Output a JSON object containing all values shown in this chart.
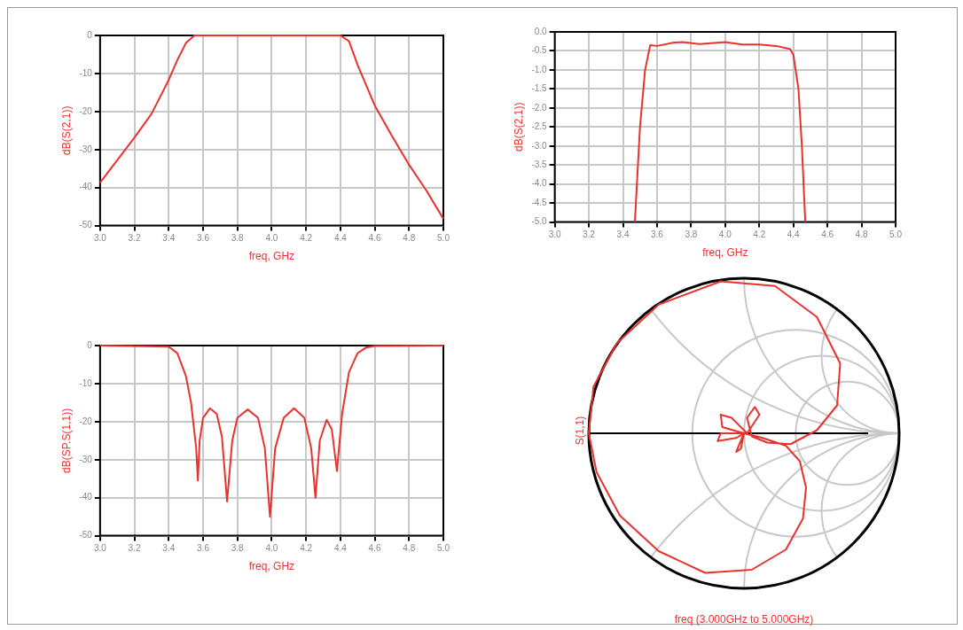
{
  "chart_data": [
    {
      "type": "line",
      "xlabel": "freq, GHz",
      "ylabel": "dB(S(2,1))",
      "x": [
        3.0,
        3.2,
        3.3,
        3.4,
        3.45,
        3.5,
        3.55,
        4.4,
        4.45,
        4.5,
        4.6,
        4.7,
        4.8,
        4.9,
        5.0
      ],
      "series": [
        {
          "color": "#e8322e",
          "values": [
            -38.7,
            -26.9,
            -20.6,
            -11.7,
            -6.5,
            -2,
            0,
            0,
            -1.5,
            -7.7,
            -18.4,
            -26.4,
            -34,
            -40.7,
            -48.2
          ]
        }
      ],
      "xlim": [
        3.0,
        5.0
      ],
      "ylim": [
        -50,
        0
      ],
      "xticks": [
        {
          "value": 3,
          "label": "3.0"
        },
        3.2,
        3.4,
        3.6,
        3.8,
        {
          "value": 4,
          "label": "4.0"
        },
        4.2,
        4.4,
        4.6,
        4.8,
        {
          "value": 5,
          "label": "5.0"
        }
      ],
      "yticks": [
        -50,
        -40,
        -30,
        -20,
        -10,
        0
      ],
      "grid": true
    },
    {
      "type": "line",
      "xlabel": "freq, GHz",
      "ylabel": "dB(S(2,1))",
      "x": [
        3.47,
        3.5,
        3.53,
        3.56,
        3.6,
        3.7,
        3.75,
        3.85,
        4.0,
        4.1,
        4.2,
        4.3,
        4.38,
        4.4,
        4.43,
        4.45,
        4.47
      ],
      "series": [
        {
          "color": "#e8322e",
          "values": [
            -5,
            -2.5,
            -1.0,
            -0.35,
            -0.37,
            -0.28,
            -0.27,
            -0.32,
            -0.27,
            -0.33,
            -0.33,
            -0.37,
            -0.45,
            -0.6,
            -1.5,
            -3,
            -5
          ]
        }
      ],
      "xlim": [
        3.0,
        5.0
      ],
      "ylim": [
        -5,
        0
      ],
      "xticks": [
        {
          "value": 3,
          "label": "3.0"
        },
        3.2,
        3.4,
        3.6,
        3.8,
        {
          "value": 4,
          "label": "4.0"
        },
        4.2,
        4.4,
        4.6,
        4.8,
        {
          "value": 5,
          "label": "5.0"
        }
      ],
      "yticks": [
        {
          "value": -5,
          "label": "-5.0"
        },
        -4.5,
        {
          "value": -4,
          "label": "-4.0"
        },
        -3.5,
        {
          "value": -3,
          "label": "-3.0"
        },
        -2.5,
        {
          "value": -2,
          "label": "-2.0"
        },
        -1.5,
        {
          "value": -1,
          "label": "-1.0"
        },
        -0.5,
        {
          "value": 0,
          "label": "0.0"
        }
      ],
      "grid": true
    },
    {
      "type": "line",
      "xlabel": "freq, GHz",
      "ylabel": "dB(SP.S(1,1))",
      "x": [
        3.0,
        3.4,
        3.45,
        3.5,
        3.53,
        3.56,
        3.57,
        3.58,
        3.6,
        3.64,
        3.68,
        3.71,
        3.74,
        3.77,
        3.8,
        3.86,
        3.92,
        3.96,
        3.99,
        4.02,
        4.07,
        4.13,
        4.19,
        4.23,
        4.255,
        4.28,
        4.32,
        4.35,
        4.38,
        4.41,
        4.45,
        4.5,
        4.55,
        4.6,
        5.0
      ],
      "series": [
        {
          "color": "#e8322e",
          "values": [
            0,
            -0.3,
            -2,
            -8,
            -15,
            -27,
            -35.5,
            -25,
            -19,
            -16.5,
            -18,
            -24,
            -41,
            -25,
            -19,
            -16.8,
            -19,
            -27,
            -45,
            -27,
            -19,
            -16.5,
            -19,
            -27,
            -40,
            -25,
            -19.5,
            -22,
            -33,
            -18,
            -7,
            -2,
            -0.5,
            -0.1,
            0
          ]
        }
      ],
      "xlim": [
        3.0,
        5.0
      ],
      "ylim": [
        -50,
        0
      ],
      "xticks": [
        {
          "value": 3,
          "label": "3.0"
        },
        3.2,
        3.4,
        3.6,
        3.8,
        {
          "value": 4,
          "label": "4.0"
        },
        4.2,
        4.4,
        4.6,
        4.8,
        {
          "value": 5,
          "label": "5.0"
        }
      ],
      "yticks": [
        -50,
        -40,
        -30,
        -20,
        -10,
        0
      ],
      "grid": true
    },
    {
      "type": "other",
      "xlabel": "freq (3.000GHz to 5.000GHz)",
      "ylabel": "S(1,1)"
    }
  ]
}
